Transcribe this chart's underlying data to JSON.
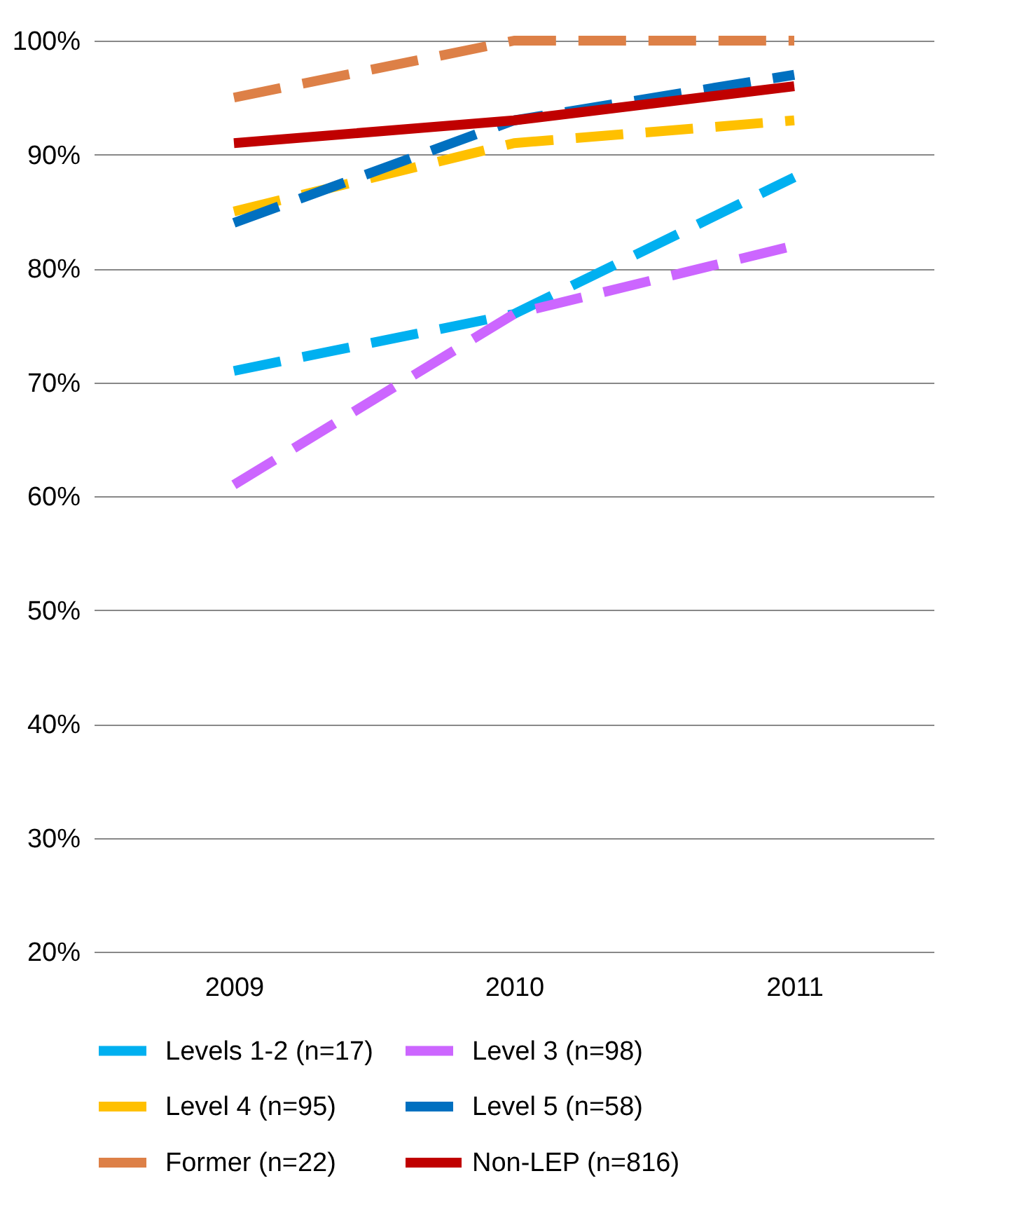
{
  "chart_data": {
    "type": "line",
    "categories": [
      "2009",
      "2010",
      "2011"
    ],
    "series": [
      {
        "name": "Levels 1-2 (n=17)",
        "color": "#00b0f0",
        "line_style": "dashed",
        "values": [
          71,
          76,
          88
        ]
      },
      {
        "name": "Level 3 (n=98)",
        "color": "#cc66ff",
        "line_style": "dashed",
        "values": [
          61,
          76,
          82
        ]
      },
      {
        "name": "Level 4 (n=95)",
        "color": "#ffc000",
        "line_style": "dashed",
        "values": [
          85,
          91,
          93
        ]
      },
      {
        "name": "Level 5 (n=58)",
        "color": "#0070c0",
        "line_style": "dashed",
        "values": [
          84,
          93,
          97
        ]
      },
      {
        "name": "Former (n=22)",
        "color": "#dd8047",
        "line_style": "dashed",
        "values": [
          95,
          100,
          100
        ]
      },
      {
        "name": "Non-LEP (n=816)",
        "color": "#c00000",
        "line_style": "solid",
        "values": [
          91,
          93,
          96
        ]
      }
    ],
    "ylim": [
      20,
      100
    ],
    "yticks": [
      {
        "value": 20,
        "label": "20%"
      },
      {
        "value": 30,
        "label": "30%"
      },
      {
        "value": 40,
        "label": "40%"
      },
      {
        "value": 50,
        "label": "50%"
      },
      {
        "value": 60,
        "label": "60%"
      },
      {
        "value": 70,
        "label": "70%"
      },
      {
        "value": 80,
        "label": "80%"
      },
      {
        "value": 90,
        "label": "90%"
      },
      {
        "value": 100,
        "label": "100%"
      }
    ],
    "grid": "y",
    "legend": "bottom",
    "marker": "none"
  }
}
